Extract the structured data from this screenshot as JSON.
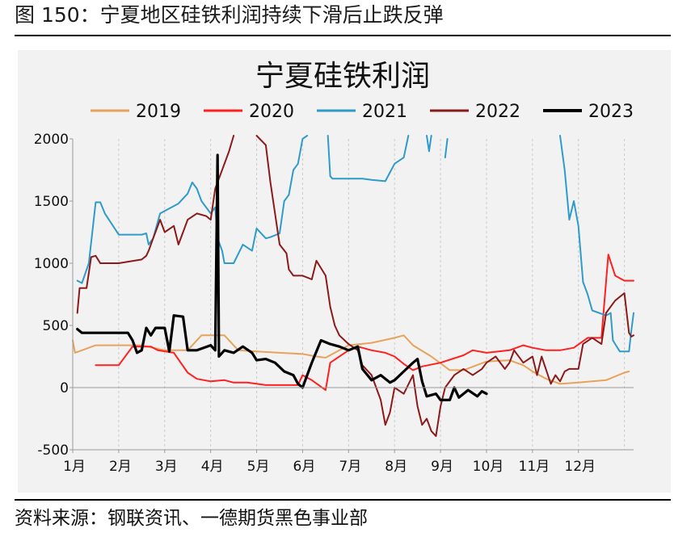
{
  "figure": {
    "title": "图 150：宁夏地区硅铁利润持续下滑后止跌反弹",
    "source": "资料来源：钢联资讯、一德期货黑色事业部"
  },
  "colors": {
    "s2019": "#E8A25A",
    "s2020": "#FF2020",
    "s2021": "#2E9BC8",
    "s2022": "#8B1A1A",
    "s2023": "#000000",
    "grid": "#c9c9c9",
    "frame": "#f2f2f2"
  },
  "chart_data": {
    "type": "line",
    "title": "宁夏硅铁利润",
    "xlabel": "",
    "ylabel": "",
    "x_unit": "month of year (1 = start of 1月)",
    "xlim": [
      1,
      13.2
    ],
    "ylim": [
      -500,
      2000
    ],
    "yticks": [
      -500,
      0,
      500,
      1000,
      1500,
      2000
    ],
    "month_labels": [
      "1月",
      "2月",
      "3月",
      "4月",
      "5月",
      "6月",
      "7月",
      "8月",
      "9月",
      "10月",
      "11月",
      "12月"
    ],
    "legend_position": "top",
    "grid": "vertical dashed",
    "series": [
      {
        "name": "2019",
        "points": [
          [
            1.0,
            380
          ],
          [
            1.05,
            280
          ],
          [
            1.2,
            300
          ],
          [
            1.5,
            340
          ],
          [
            2.5,
            340
          ],
          [
            3.0,
            300
          ],
          [
            3.5,
            300
          ],
          [
            3.8,
            420
          ],
          [
            4.3,
            420
          ],
          [
            4.6,
            300
          ],
          [
            5.0,
            290
          ],
          [
            5.5,
            280
          ],
          [
            6.0,
            270
          ],
          [
            6.3,
            250
          ],
          [
            6.5,
            240
          ],
          [
            6.8,
            300
          ],
          [
            7.0,
            340
          ],
          [
            7.5,
            360
          ],
          [
            8.0,
            400
          ],
          [
            8.2,
            420
          ],
          [
            8.4,
            340
          ],
          [
            8.8,
            250
          ],
          [
            9.2,
            140
          ],
          [
            9.5,
            140
          ],
          [
            10.0,
            210
          ],
          [
            10.5,
            220
          ],
          [
            10.8,
            180
          ],
          [
            11.0,
            130
          ],
          [
            11.3,
            70
          ],
          [
            11.6,
            30
          ],
          [
            12.0,
            40
          ],
          [
            12.3,
            50
          ],
          [
            12.6,
            60
          ],
          [
            13.0,
            120
          ],
          [
            13.1,
            130
          ]
        ]
      },
      {
        "name": "2020",
        "points": [
          [
            1.5,
            180
          ],
          [
            2.0,
            180
          ],
          [
            2.3,
            330
          ],
          [
            2.7,
            330
          ],
          [
            2.85,
            300
          ],
          [
            3.2,
            280
          ],
          [
            3.5,
            120
          ],
          [
            3.7,
            70
          ],
          [
            4.0,
            50
          ],
          [
            4.3,
            60
          ],
          [
            4.5,
            40
          ],
          [
            4.8,
            40
          ],
          [
            5.2,
            20
          ],
          [
            5.6,
            20
          ],
          [
            5.9,
            20
          ],
          [
            6.0,
            100
          ],
          [
            6.2,
            60
          ],
          [
            6.5,
            -20
          ],
          [
            6.6,
            200
          ],
          [
            7.0,
            300
          ],
          [
            7.2,
            330
          ],
          [
            7.5,
            300
          ],
          [
            7.8,
            280
          ],
          [
            8.0,
            250
          ],
          [
            8.2,
            190
          ],
          [
            8.4,
            140
          ],
          [
            8.6,
            170
          ],
          [
            9.0,
            200
          ],
          [
            9.5,
            260
          ],
          [
            9.7,
            300
          ],
          [
            10.0,
            280
          ],
          [
            10.5,
            300
          ],
          [
            10.8,
            340
          ],
          [
            11.0,
            320
          ],
          [
            11.3,
            300
          ],
          [
            11.6,
            300
          ],
          [
            11.9,
            320
          ],
          [
            12.2,
            400
          ],
          [
            12.5,
            400
          ],
          [
            12.65,
            1070
          ],
          [
            12.8,
            900
          ],
          [
            13.0,
            860
          ],
          [
            13.2,
            860
          ]
        ]
      },
      {
        "name": "2021",
        "points": [
          [
            1.1,
            860
          ],
          [
            1.2,
            840
          ],
          [
            1.35,
            1000
          ],
          [
            1.5,
            1490
          ],
          [
            1.6,
            1490
          ],
          [
            1.7,
            1400
          ],
          [
            2.0,
            1230
          ],
          [
            2.5,
            1230
          ],
          [
            2.6,
            1240
          ],
          [
            2.65,
            1150
          ],
          [
            2.75,
            1200
          ],
          [
            2.9,
            1400
          ],
          [
            3.0,
            1420
          ],
          [
            3.3,
            1480
          ],
          [
            3.5,
            1560
          ],
          [
            3.6,
            1650
          ],
          [
            3.7,
            1600
          ],
          [
            3.8,
            1500
          ],
          [
            4.0,
            1400
          ],
          [
            4.1,
            1450
          ],
          [
            4.15,
            1200
          ],
          [
            4.25,
            1100
          ],
          [
            4.3,
            1000
          ],
          [
            4.5,
            1000
          ],
          [
            4.7,
            1150
          ],
          [
            4.9,
            1100
          ],
          [
            5.0,
            1280
          ],
          [
            5.2,
            1200
          ],
          [
            5.3,
            1210
          ],
          [
            5.5,
            1240
          ],
          [
            5.6,
            1500
          ],
          [
            5.7,
            1550
          ],
          [
            5.8,
            1750
          ],
          [
            5.9,
            1800
          ],
          [
            6.0,
            2000
          ],
          [
            6.1,
            2050
          ]
        ]
      },
      {
        "name": "2021",
        "points": [
          [
            6.55,
            2050
          ],
          [
            6.6,
            1700
          ],
          [
            6.65,
            1680
          ],
          [
            7.0,
            1680
          ],
          [
            7.3,
            1680
          ],
          [
            7.5,
            1670
          ],
          [
            7.8,
            1660
          ],
          [
            8.0,
            1800
          ],
          [
            8.2,
            1850
          ],
          [
            8.3,
            2050
          ]
        ]
      },
      {
        "name": "2021",
        "points": [
          [
            8.7,
            2050
          ],
          [
            8.75,
            1900
          ],
          [
            8.8,
            2050
          ]
        ]
      },
      {
        "name": "2021",
        "points": [
          [
            9.1,
            1850
          ],
          [
            9.15,
            2000
          ]
        ]
      },
      {
        "name": "2021",
        "points": [
          [
            11.6,
            2050
          ],
          [
            11.7,
            1750
          ],
          [
            11.8,
            1350
          ],
          [
            11.9,
            1500
          ],
          [
            12.0,
            1300
          ],
          [
            12.1,
            850
          ],
          [
            12.2,
            750
          ],
          [
            12.3,
            620
          ],
          [
            12.6,
            580
          ],
          [
            12.7,
            600
          ],
          [
            12.75,
            380
          ],
          [
            12.8,
            350
          ],
          [
            12.9,
            290
          ],
          [
            13.1,
            290
          ],
          [
            13.15,
            460
          ],
          [
            13.2,
            600
          ]
        ]
      },
      {
        "name": "2022",
        "points": [
          [
            1.1,
            600
          ],
          [
            1.15,
            800
          ],
          [
            1.3,
            800
          ],
          [
            1.4,
            1050
          ],
          [
            1.5,
            1060
          ],
          [
            1.6,
            1000
          ],
          [
            2.0,
            1000
          ],
          [
            2.5,
            1030
          ],
          [
            2.6,
            1060
          ],
          [
            2.65,
            1100
          ],
          [
            2.75,
            1200
          ],
          [
            2.9,
            1350
          ],
          [
            3.0,
            1250
          ],
          [
            3.2,
            1300
          ],
          [
            3.3,
            1150
          ],
          [
            3.5,
            1350
          ],
          [
            3.7,
            1400
          ],
          [
            3.9,
            1380
          ],
          [
            4.0,
            1350
          ],
          [
            4.1,
            1600
          ],
          [
            4.3,
            1800
          ],
          [
            4.4,
            1900
          ],
          [
            4.5,
            2050
          ]
        ]
      },
      {
        "name": "2022",
        "points": [
          [
            5.0,
            2050
          ],
          [
            5.2,
            1950
          ],
          [
            5.3,
            1650
          ],
          [
            5.5,
            1150
          ],
          [
            5.65,
            1080
          ],
          [
            5.7,
            950
          ],
          [
            5.8,
            900
          ],
          [
            6.0,
            900
          ],
          [
            6.2,
            870
          ],
          [
            6.3,
            1020
          ],
          [
            6.5,
            900
          ],
          [
            6.6,
            650
          ],
          [
            6.7,
            500
          ],
          [
            6.8,
            420
          ],
          [
            7.0,
            350
          ],
          [
            7.2,
            300
          ],
          [
            7.3,
            180
          ],
          [
            7.5,
            100
          ],
          [
            7.7,
            -100
          ],
          [
            7.8,
            -300
          ],
          [
            7.9,
            -200
          ],
          [
            8.0,
            0
          ],
          [
            8.2,
            -50
          ],
          [
            8.4,
            100
          ],
          [
            8.5,
            -150
          ],
          [
            8.6,
            -300
          ],
          [
            8.7,
            -250
          ],
          [
            8.8,
            -350
          ],
          [
            8.9,
            -390
          ],
          [
            9.0,
            -150
          ],
          [
            9.1,
            0
          ],
          [
            9.3,
            100
          ],
          [
            9.5,
            150
          ],
          [
            9.7,
            100
          ],
          [
            9.9,
            150
          ],
          [
            10.0,
            200
          ],
          [
            10.2,
            250
          ],
          [
            10.4,
            150
          ],
          [
            10.5,
            200
          ],
          [
            10.6,
            300
          ],
          [
            10.8,
            200
          ],
          [
            11.0,
            250
          ],
          [
            11.1,
            100
          ],
          [
            11.2,
            250
          ],
          [
            11.4,
            30
          ],
          [
            11.5,
            100
          ],
          [
            11.6,
            50
          ],
          [
            11.7,
            130
          ],
          [
            11.8,
            150
          ],
          [
            12.0,
            150
          ],
          [
            12.1,
            350
          ],
          [
            12.3,
            400
          ],
          [
            12.5,
            350
          ],
          [
            12.6,
            600
          ],
          [
            12.8,
            700
          ],
          [
            13.0,
            760
          ],
          [
            13.1,
            440
          ],
          [
            13.15,
            410
          ],
          [
            13.2,
            420
          ]
        ]
      },
      {
        "name": "2023",
        "points": [
          [
            1.1,
            470
          ],
          [
            1.2,
            440
          ],
          [
            1.5,
            440
          ],
          [
            2.0,
            440
          ],
          [
            2.2,
            440
          ],
          [
            2.3,
            380
          ],
          [
            2.4,
            280
          ],
          [
            2.5,
            300
          ],
          [
            2.6,
            480
          ],
          [
            2.7,
            420
          ],
          [
            2.8,
            480
          ],
          [
            3.0,
            480
          ],
          [
            3.1,
            290
          ],
          [
            3.2,
            580
          ],
          [
            3.4,
            570
          ],
          [
            3.5,
            300
          ],
          [
            3.7,
            300
          ],
          [
            4.0,
            340
          ],
          [
            4.1,
            300
          ],
          [
            4.15,
            1870
          ],
          [
            4.18,
            250
          ],
          [
            4.3,
            300
          ],
          [
            4.5,
            280
          ],
          [
            4.7,
            330
          ],
          [
            4.9,
            280
          ],
          [
            5.0,
            220
          ],
          [
            5.2,
            230
          ],
          [
            5.4,
            200
          ],
          [
            5.6,
            130
          ],
          [
            5.8,
            100
          ],
          [
            5.9,
            30
          ],
          [
            6.0,
            0
          ],
          [
            6.1,
            100
          ],
          [
            6.2,
            200
          ],
          [
            6.4,
            380
          ],
          [
            6.6,
            350
          ],
          [
            6.8,
            330
          ],
          [
            7.0,
            300
          ],
          [
            7.2,
            330
          ],
          [
            7.3,
            150
          ],
          [
            7.5,
            60
          ],
          [
            7.7,
            100
          ],
          [
            7.9,
            40
          ],
          [
            8.0,
            60
          ],
          [
            8.2,
            130
          ],
          [
            8.4,
            200
          ],
          [
            8.5,
            230
          ],
          [
            8.6,
            50
          ],
          [
            8.7,
            -70
          ],
          [
            8.9,
            -50
          ],
          [
            9.0,
            -100
          ],
          [
            9.2,
            -100
          ],
          [
            9.3,
            0
          ],
          [
            9.4,
            -80
          ],
          [
            9.6,
            -20
          ],
          [
            9.8,
            -70
          ],
          [
            9.9,
            -30
          ],
          [
            10.0,
            -50
          ]
        ]
      }
    ]
  }
}
